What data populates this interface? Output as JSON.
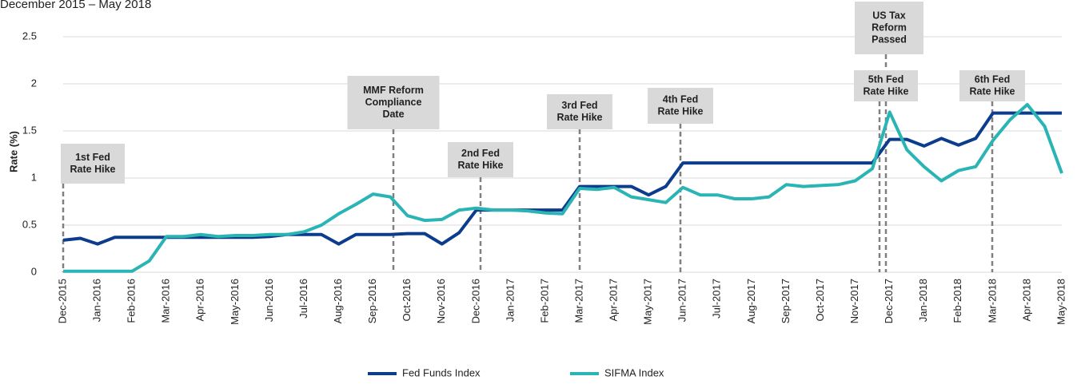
{
  "chart_data": {
    "type": "line",
    "subtitle": "December 2015 – May 2018",
    "y_label": "Rate (%)",
    "categories": [
      "Dec-2015",
      null,
      "Jan-2016",
      null,
      "Feb-2016",
      null,
      "Mar-2016",
      null,
      "Apr-2016",
      null,
      "May-2016",
      null,
      "Jun-2016",
      null,
      "Jul-2016",
      null,
      "Aug-2016",
      null,
      "Sep-2016",
      null,
      "Oct-2016",
      null,
      "Nov-2016",
      null,
      "Dec-2016",
      null,
      "Jan-2017",
      null,
      "Feb-2017",
      null,
      "Mar-2017",
      null,
      "Apr-2017",
      null,
      "May-2017",
      null,
      "Jun-2017",
      null,
      "Jul-2017",
      null,
      "Aug-2017",
      null,
      "Sep-2017",
      null,
      "Oct-2017",
      null,
      "Nov-2017",
      null,
      "Dec-2017",
      null,
      "Jan-2018",
      null,
      "Feb-2018",
      null,
      "Mar-2018",
      null,
      "Apr-2018",
      null,
      "May-2018"
    ],
    "series": [
      {
        "name": "Fed Funds Index",
        "color": "#0c3c8c",
        "values": [
          0.34,
          0.36,
          0.3,
          0.37,
          0.37,
          0.37,
          0.37,
          0.37,
          0.37,
          0.37,
          0.37,
          0.37,
          0.38,
          0.4,
          0.4,
          0.4,
          0.3,
          0.4,
          0.4,
          0.4,
          0.41,
          0.41,
          0.3,
          0.42,
          0.66,
          0.66,
          0.66,
          0.66,
          0.66,
          0.66,
          0.91,
          0.91,
          0.91,
          0.91,
          0.82,
          0.91,
          1.16,
          1.16,
          1.16,
          1.16,
          1.16,
          1.16,
          1.16,
          1.16,
          1.16,
          1.16,
          1.16,
          1.16,
          1.41,
          1.41,
          1.34,
          1.42,
          1.35,
          1.42,
          1.69,
          1.69,
          1.69,
          1.69,
          1.69
        ]
      },
      {
        "name": "SIFMA Index",
        "color": "#2ab4b4",
        "values": [
          0.01,
          0.01,
          0.01,
          0.01,
          0.01,
          0.12,
          0.38,
          0.38,
          0.4,
          0.38,
          0.39,
          0.39,
          0.4,
          0.4,
          0.43,
          0.5,
          0.62,
          0.72,
          0.83,
          0.8,
          0.6,
          0.55,
          0.56,
          0.66,
          0.68,
          0.66,
          0.66,
          0.65,
          0.63,
          0.62,
          0.89,
          0.88,
          0.9,
          0.8,
          0.77,
          0.74,
          0.9,
          0.82,
          0.82,
          0.78,
          0.78,
          0.8,
          0.93,
          0.91,
          0.92,
          0.93,
          0.97,
          1.1,
          1.7,
          1.3,
          1.12,
          0.97,
          1.08,
          1.12,
          1.4,
          1.62,
          1.78,
          1.55,
          1.05
        ]
      }
    ],
    "ylim": [
      0,
      2.5
    ],
    "yticks": [
      0,
      0.5,
      1,
      1.5,
      2,
      2.5
    ],
    "grid": true,
    "legend": "bottom",
    "annotations": [
      {
        "lines": [
          "1st Fed",
          "Rate Hike"
        ]
      },
      {
        "lines": [
          "MMF Reform",
          "Compliance",
          "Date"
        ]
      },
      {
        "lines": [
          "2nd Fed",
          "Rate Hike"
        ]
      },
      {
        "lines": [
          "3rd Fed",
          "Rate Hike"
        ]
      },
      {
        "lines": [
          "4th Fed",
          "Rate Hike"
        ]
      },
      {
        "lines": [
          "US Tax",
          "Reform",
          "Passed"
        ]
      },
      {
        "lines": [
          "5th Fed",
          "Rate Hike"
        ]
      },
      {
        "lines": [
          "6th Fed",
          "Rate Hike"
        ]
      }
    ]
  }
}
